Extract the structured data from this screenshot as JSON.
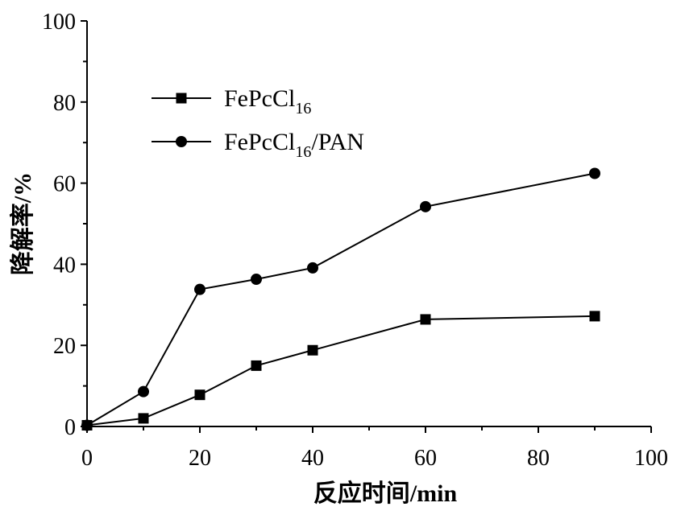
{
  "chart_data": {
    "type": "line",
    "title": "",
    "xlabel": {
      "text": "反应时间",
      "unit": "/min"
    },
    "ylabel": {
      "text": "降解率",
      "unit": "/%"
    },
    "xlim": [
      0,
      100
    ],
    "ylim": [
      0,
      100
    ],
    "xticks": [
      "0",
      "20",
      "40",
      "60",
      "80",
      "100"
    ],
    "yticks": [
      "0",
      "20",
      "40",
      "60",
      "80",
      "100"
    ],
    "grid": false,
    "legend_position": "top-left",
    "series": [
      {
        "name": "FePcCl16",
        "name_parts": {
          "base": "FePcCl",
          "sub": "16",
          "suffix": ""
        },
        "marker": "square",
        "color": "#000000",
        "points": [
          [
            0,
            0.3
          ],
          [
            10,
            2
          ],
          [
            20,
            7.8
          ],
          [
            30,
            15
          ],
          [
            40,
            18.8
          ],
          [
            60,
            26.4
          ],
          [
            90,
            27.2
          ]
        ]
      },
      {
        "name": "FePcCl16/PAN",
        "name_parts": {
          "base": "FePcCl",
          "sub": "16",
          "suffix": "/PAN"
        },
        "marker": "circle",
        "color": "#000000",
        "points": [
          [
            0,
            0.3
          ],
          [
            10,
            8.6
          ],
          [
            20,
            33.8
          ],
          [
            30,
            36.3
          ],
          [
            40,
            39.1
          ],
          [
            60,
            54.2
          ],
          [
            90,
            62.4
          ]
        ]
      }
    ]
  }
}
